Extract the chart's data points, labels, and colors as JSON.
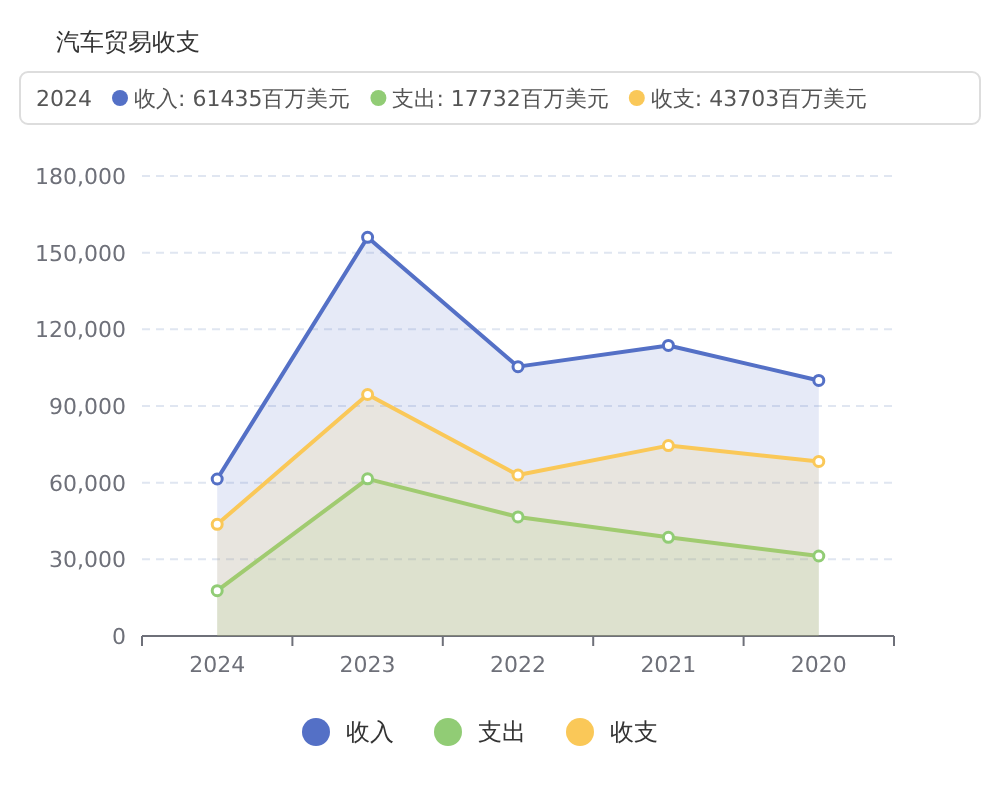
{
  "chart_data": {
    "type": "area",
    "title": "汽车贸易收支",
    "categories": [
      "2024",
      "2023",
      "2022",
      "2021",
      "2020"
    ],
    "series": [
      {
        "name": "收入",
        "color": "#5470c6",
        "values": [
          61435,
          156000,
          105400,
          113700,
          100000
        ]
      },
      {
        "name": "支出",
        "color": "#91cc75",
        "values": [
          17732,
          61500,
          46600,
          38600,
          31300
        ]
      },
      {
        "name": "收支",
        "color": "#fac858",
        "values": [
          43703,
          94500,
          63000,
          74500,
          68300
        ]
      }
    ],
    "ylim": [
      0,
      180000
    ],
    "yticks": [
      0,
      {
        "value": 30000,
        "label": "30,000"
      },
      {
        "value": 60000,
        "label": "60,000"
      },
      {
        "value": 90000,
        "label": "90,000"
      },
      {
        "value": 120000,
        "label": "120,000"
      },
      {
        "value": 150000,
        "label": "150,000"
      },
      {
        "value": 180000,
        "label": "180,000"
      }
    ],
    "grid": "y",
    "legend": "bottom",
    "marker": "circle",
    "line_style": "solid",
    "annotations": [
      "2024",
      "收入: 61435百万美元",
      "支出: 17732百万美元",
      "收支: 43703百万美元"
    ]
  }
}
